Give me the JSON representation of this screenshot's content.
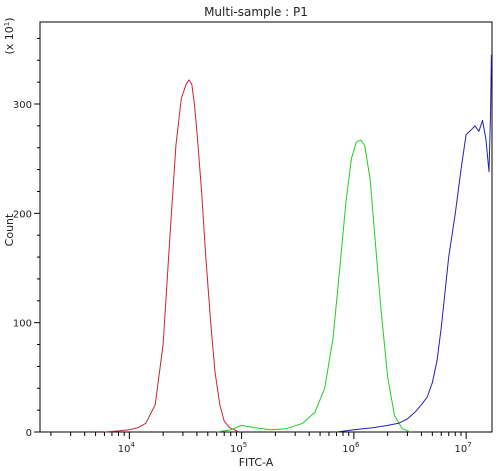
{
  "chart_data": {
    "type": "line",
    "title": "Multi-sample : P1",
    "xlabel": "FITC-A",
    "ylabel": "Count",
    "y_multiplier": {
      "prefix": "(x 10",
      "exp": "1",
      "suffix": ")"
    },
    "xscale": "log",
    "xlim": [
      1600,
      17000000
    ],
    "ylim": [
      0,
      375
    ],
    "x_ticks": [
      {
        "base": "10",
        "exp": "4",
        "value": 10000
      },
      {
        "base": "10",
        "exp": "5",
        "value": 100000
      },
      {
        "base": "10",
        "exp": "6",
        "value": 1000000
      },
      {
        "base": "10",
        "exp": "7",
        "value": 10000000
      }
    ],
    "y_ticks": [
      {
        "label": "0",
        "value": 0
      },
      {
        "label": "100",
        "value": 100
      },
      {
        "label": "200",
        "value": 200
      },
      {
        "label": "300",
        "value": 300
      }
    ],
    "series": [
      {
        "color": "#cc2233",
        "x": [
          6000,
          8000,
          10000,
          12000,
          14000,
          17000,
          20000,
          23000,
          26000,
          29000,
          32000,
          34000,
          36000,
          38000,
          40000,
          44000,
          48000,
          53000,
          58000,
          64000,
          70000,
          78000,
          86000,
          95000
        ],
        "y": [
          0,
          1,
          2,
          4,
          8,
          25,
          80,
          180,
          262,
          305,
          318,
          322,
          318,
          300,
          275,
          220,
          160,
          100,
          55,
          25,
          10,
          4,
          2,
          0
        ]
      },
      {
        "color": "#22cc22",
        "x": [
          60000,
          80000,
          100000,
          130000,
          180000,
          250000,
          350000,
          450000,
          550000,
          650000,
          750000,
          850000,
          950000,
          1050000,
          1150000,
          1250000,
          1400000,
          1550000,
          1750000,
          2000000,
          2300000,
          2700000,
          3200000
        ],
        "y": [
          0,
          2,
          6,
          4,
          2,
          3,
          8,
          18,
          40,
          85,
          150,
          210,
          250,
          265,
          267,
          262,
          230,
          175,
          110,
          50,
          15,
          3,
          0
        ]
      },
      {
        "color": "#2222bb",
        "x": [
          700000,
          1000000,
          1500000,
          2000000,
          2500000,
          3000000,
          3500000,
          4000000,
          4500000,
          5000000,
          5500000,
          6000000,
          7000000,
          8000000,
          9000000,
          10000000,
          11000000,
          12000000,
          13000000,
          14000000,
          15000000,
          16000000,
          16500000,
          16800000
        ],
        "y": [
          0,
          2,
          4,
          6,
          8,
          12,
          18,
          25,
          32,
          45,
          65,
          95,
          160,
          200,
          240,
          272,
          276,
          280,
          275,
          285,
          268,
          238,
          290,
          345
        ]
      }
    ]
  }
}
